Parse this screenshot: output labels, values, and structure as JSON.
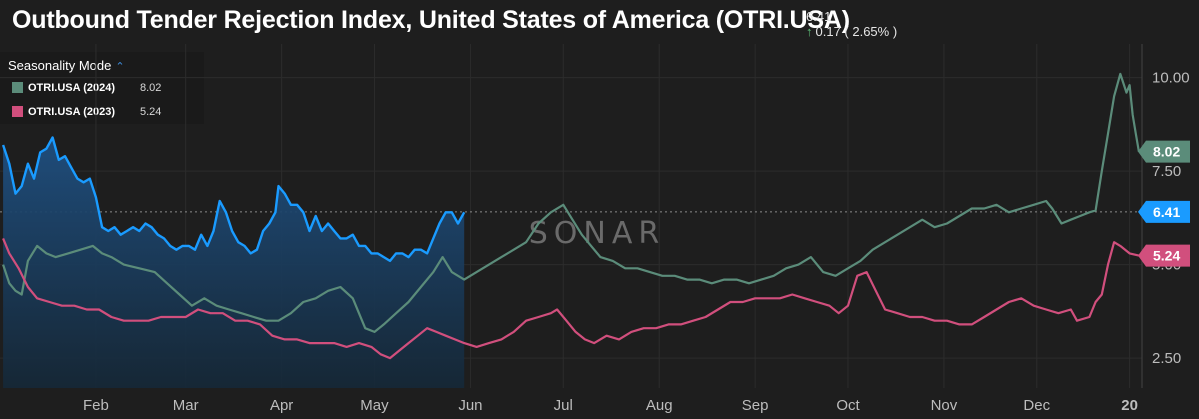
{
  "header": {
    "title": "Outbound Tender Rejection Index, United States of America (OTRI.USA)",
    "last_value": "6.41",
    "change": "0.17 ( 2.65% )",
    "change_icon": "up-arrow-icon",
    "change_color": "#5ec27a"
  },
  "legend": {
    "mode_label": "Seasonality Mode",
    "mode_icon": "chevron-up-icon",
    "items": [
      {
        "label": "OTRI.USA (2024)",
        "value": "8.02",
        "color": "#5b8c7a"
      },
      {
        "label": "OTRI.USA (2023)",
        "value": "5.24",
        "color": "#d14f7d"
      }
    ]
  },
  "watermark": "SONAR",
  "chart_data": {
    "type": "line",
    "y_ticks": [
      "10.00",
      "7.50",
      "5.00",
      "2.50"
    ],
    "ylim": [
      1.7,
      10.9
    ],
    "x_ticks": [
      {
        "label": "Feb",
        "day": 31
      },
      {
        "label": "Mar",
        "day": 60
      },
      {
        "label": "Apr",
        "day": 91
      },
      {
        "label": "May",
        "day": 121
      },
      {
        "label": "Jun",
        "day": 152
      },
      {
        "label": "Jul",
        "day": 182
      },
      {
        "label": "Aug",
        "day": 213
      },
      {
        "label": "Sep",
        "day": 244
      },
      {
        "label": "Oct",
        "day": 274
      },
      {
        "label": "Nov",
        "day": 305
      },
      {
        "label": "Dec",
        "day": 335
      },
      {
        "label": "20",
        "day": 365
      }
    ],
    "xlim": [
      0,
      369
    ],
    "reference_line": 6.41,
    "series": [
      {
        "name": "OTRI.USA (2024)",
        "color": "#5b8c7a",
        "tag": "8.02",
        "last": 8.02,
        "points": [
          [
            1,
            5.0
          ],
          [
            3,
            4.5
          ],
          [
            5,
            4.3
          ],
          [
            7,
            4.2
          ],
          [
            9,
            5.1
          ],
          [
            12,
            5.5
          ],
          [
            15,
            5.3
          ],
          [
            18,
            5.2
          ],
          [
            22,
            5.3
          ],
          [
            26,
            5.4
          ],
          [
            30,
            5.5
          ],
          [
            33,
            5.3
          ],
          [
            36,
            5.2
          ],
          [
            40,
            5.0
          ],
          [
            45,
            4.9
          ],
          [
            50,
            4.8
          ],
          [
            54,
            4.5
          ],
          [
            58,
            4.2
          ],
          [
            62,
            3.9
          ],
          [
            66,
            4.1
          ],
          [
            70,
            3.9
          ],
          [
            74,
            3.8
          ],
          [
            78,
            3.7
          ],
          [
            82,
            3.6
          ],
          [
            86,
            3.5
          ],
          [
            90,
            3.5
          ],
          [
            94,
            3.7
          ],
          [
            98,
            4.0
          ],
          [
            102,
            4.1
          ],
          [
            106,
            4.3
          ],
          [
            110,
            4.4
          ],
          [
            114,
            4.1
          ],
          [
            118,
            3.3
          ],
          [
            121,
            3.2
          ],
          [
            124,
            3.4
          ],
          [
            128,
            3.7
          ],
          [
            132,
            4.0
          ],
          [
            136,
            4.4
          ],
          [
            140,
            4.8
          ],
          [
            143,
            5.2
          ],
          [
            146,
            4.8
          ],
          [
            150,
            4.6
          ],
          [
            154,
            4.8
          ],
          [
            158,
            5.0
          ],
          [
            162,
            5.2
          ],
          [
            166,
            5.4
          ],
          [
            170,
            5.6
          ],
          [
            174,
            6.1
          ],
          [
            178,
            6.4
          ],
          [
            182,
            6.6
          ],
          [
            185,
            6.2
          ],
          [
            188,
            5.8
          ],
          [
            191,
            5.5
          ],
          [
            194,
            5.2
          ],
          [
            198,
            5.1
          ],
          [
            202,
            4.9
          ],
          [
            206,
            4.9
          ],
          [
            210,
            4.8
          ],
          [
            214,
            4.7
          ],
          [
            218,
            4.7
          ],
          [
            222,
            4.6
          ],
          [
            226,
            4.6
          ],
          [
            230,
            4.5
          ],
          [
            234,
            4.6
          ],
          [
            238,
            4.6
          ],
          [
            242,
            4.5
          ],
          [
            246,
            4.6
          ],
          [
            250,
            4.7
          ],
          [
            254,
            4.9
          ],
          [
            258,
            5.0
          ],
          [
            262,
            5.2
          ],
          [
            266,
            4.8
          ],
          [
            270,
            4.7
          ],
          [
            274,
            4.9
          ],
          [
            278,
            5.1
          ],
          [
            282,
            5.4
          ],
          [
            286,
            5.6
          ],
          [
            290,
            5.8
          ],
          [
            294,
            6.0
          ],
          [
            298,
            6.2
          ],
          [
            302,
            6.0
          ],
          [
            306,
            6.1
          ],
          [
            310,
            6.3
          ],
          [
            314,
            6.5
          ],
          [
            318,
            6.5
          ],
          [
            322,
            6.6
          ],
          [
            326,
            6.4
          ],
          [
            330,
            6.5
          ],
          [
            334,
            6.6
          ],
          [
            338,
            6.7
          ],
          [
            340,
            6.5
          ],
          [
            343,
            6.1
          ],
          [
            346,
            6.2
          ],
          [
            349,
            6.3
          ],
          [
            352,
            6.4
          ],
          [
            354,
            6.45
          ],
          [
            356,
            7.5
          ],
          [
            358,
            8.5
          ],
          [
            360,
            9.5
          ],
          [
            362,
            10.1
          ],
          [
            364,
            9.6
          ],
          [
            365,
            9.8
          ],
          [
            366,
            9.0
          ],
          [
            367,
            8.5
          ],
          [
            368,
            8.02
          ]
        ]
      },
      {
        "name": "OTRI.USA (2023)",
        "color": "#d14f7d",
        "tag": "5.24",
        "last": 5.24,
        "points": [
          [
            1,
            5.7
          ],
          [
            3,
            5.3
          ],
          [
            6,
            4.9
          ],
          [
            9,
            4.4
          ],
          [
            12,
            4.1
          ],
          [
            16,
            4.0
          ],
          [
            20,
            3.9
          ],
          [
            24,
            3.9
          ],
          [
            28,
            3.8
          ],
          [
            32,
            3.8
          ],
          [
            36,
            3.6
          ],
          [
            40,
            3.5
          ],
          [
            44,
            3.5
          ],
          [
            48,
            3.5
          ],
          [
            52,
            3.6
          ],
          [
            56,
            3.6
          ],
          [
            60,
            3.6
          ],
          [
            64,
            3.8
          ],
          [
            68,
            3.7
          ],
          [
            72,
            3.7
          ],
          [
            76,
            3.5
          ],
          [
            80,
            3.5
          ],
          [
            84,
            3.4
          ],
          [
            88,
            3.1
          ],
          [
            92,
            3.0
          ],
          [
            96,
            3.0
          ],
          [
            100,
            2.9
          ],
          [
            104,
            2.9
          ],
          [
            108,
            2.9
          ],
          [
            112,
            2.8
          ],
          [
            116,
            2.9
          ],
          [
            120,
            2.8
          ],
          [
            123,
            2.6
          ],
          [
            126,
            2.5
          ],
          [
            129,
            2.7
          ],
          [
            132,
            2.9
          ],
          [
            135,
            3.1
          ],
          [
            138,
            3.3
          ],
          [
            141,
            3.2
          ],
          [
            144,
            3.1
          ],
          [
            147,
            3.0
          ],
          [
            150,
            2.9
          ],
          [
            154,
            2.8
          ],
          [
            158,
            2.9
          ],
          [
            162,
            3.0
          ],
          [
            166,
            3.2
          ],
          [
            170,
            3.5
          ],
          [
            174,
            3.6
          ],
          [
            178,
            3.7
          ],
          [
            180,
            3.8
          ],
          [
            183,
            3.5
          ],
          [
            186,
            3.2
          ],
          [
            189,
            3.0
          ],
          [
            192,
            2.9
          ],
          [
            196,
            3.1
          ],
          [
            200,
            3.0
          ],
          [
            204,
            3.2
          ],
          [
            208,
            3.3
          ],
          [
            212,
            3.3
          ],
          [
            216,
            3.4
          ],
          [
            220,
            3.4
          ],
          [
            224,
            3.5
          ],
          [
            228,
            3.6
          ],
          [
            232,
            3.8
          ],
          [
            236,
            4.0
          ],
          [
            240,
            4.0
          ],
          [
            244,
            4.1
          ],
          [
            248,
            4.1
          ],
          [
            252,
            4.1
          ],
          [
            256,
            4.2
          ],
          [
            260,
            4.1
          ],
          [
            264,
            4.0
          ],
          [
            268,
            3.9
          ],
          [
            271,
            3.7
          ],
          [
            274,
            3.9
          ],
          [
            277,
            4.7
          ],
          [
            280,
            4.8
          ],
          [
            283,
            4.3
          ],
          [
            286,
            3.8
          ],
          [
            290,
            3.7
          ],
          [
            294,
            3.6
          ],
          [
            298,
            3.6
          ],
          [
            302,
            3.5
          ],
          [
            306,
            3.5
          ],
          [
            310,
            3.4
          ],
          [
            314,
            3.4
          ],
          [
            318,
            3.6
          ],
          [
            322,
            3.8
          ],
          [
            326,
            4.0
          ],
          [
            330,
            4.1
          ],
          [
            334,
            3.9
          ],
          [
            338,
            3.8
          ],
          [
            342,
            3.7
          ],
          [
            346,
            3.8
          ],
          [
            348,
            3.5
          ],
          [
            352,
            3.6
          ],
          [
            354,
            4.0
          ],
          [
            356,
            4.2
          ],
          [
            358,
            5.0
          ],
          [
            360,
            5.6
          ],
          [
            362,
            5.5
          ],
          [
            365,
            5.3
          ],
          [
            368,
            5.24
          ]
        ]
      },
      {
        "name": "",
        "color": "#1a9bff",
        "tag": "6.41",
        "last": 6.41,
        "fill": true,
        "points": [
          [
            1,
            8.2
          ],
          [
            3,
            7.7
          ],
          [
            5,
            6.9
          ],
          [
            7,
            7.1
          ],
          [
            9,
            7.7
          ],
          [
            11,
            7.3
          ],
          [
            13,
            8.0
          ],
          [
            15,
            8.1
          ],
          [
            17,
            8.4
          ],
          [
            19,
            7.8
          ],
          [
            21,
            7.9
          ],
          [
            23,
            7.6
          ],
          [
            25,
            7.3
          ],
          [
            27,
            7.2
          ],
          [
            29,
            7.3
          ],
          [
            31,
            6.8
          ],
          [
            33,
            6.0
          ],
          [
            35,
            5.9
          ],
          [
            37,
            6.0
          ],
          [
            39,
            5.8
          ],
          [
            41,
            5.9
          ],
          [
            43,
            6.0
          ],
          [
            45,
            5.9
          ],
          [
            47,
            6.1
          ],
          [
            49,
            6.0
          ],
          [
            51,
            5.8
          ],
          [
            53,
            5.7
          ],
          [
            55,
            5.5
          ],
          [
            57,
            5.4
          ],
          [
            59,
            5.5
          ],
          [
            61,
            5.5
          ],
          [
            63,
            5.4
          ],
          [
            65,
            5.8
          ],
          [
            67,
            5.5
          ],
          [
            69,
            5.9
          ],
          [
            71,
            6.7
          ],
          [
            73,
            6.4
          ],
          [
            75,
            5.9
          ],
          [
            77,
            5.6
          ],
          [
            79,
            5.5
          ],
          [
            81,
            5.3
          ],
          [
            83,
            5.4
          ],
          [
            85,
            5.9
          ],
          [
            87,
            6.1
          ],
          [
            89,
            6.4
          ],
          [
            90,
            7.1
          ],
          [
            92,
            6.9
          ],
          [
            94,
            6.6
          ],
          [
            96,
            6.6
          ],
          [
            98,
            6.4
          ],
          [
            100,
            5.9
          ],
          [
            102,
            6.3
          ],
          [
            104,
            5.9
          ],
          [
            106,
            6.1
          ],
          [
            108,
            5.9
          ],
          [
            110,
            5.7
          ],
          [
            112,
            5.7
          ],
          [
            114,
            5.8
          ],
          [
            116,
            5.5
          ],
          [
            118,
            5.5
          ],
          [
            120,
            5.3
          ],
          [
            122,
            5.3
          ],
          [
            124,
            5.2
          ],
          [
            126,
            5.1
          ],
          [
            128,
            5.3
          ],
          [
            130,
            5.3
          ],
          [
            132,
            5.2
          ],
          [
            134,
            5.4
          ],
          [
            136,
            5.4
          ],
          [
            138,
            5.3
          ],
          [
            140,
            5.7
          ],
          [
            142,
            6.1
          ],
          [
            144,
            6.4
          ],
          [
            146,
            6.4
          ],
          [
            148,
            6.1
          ],
          [
            150,
            6.4
          ]
        ]
      }
    ]
  }
}
